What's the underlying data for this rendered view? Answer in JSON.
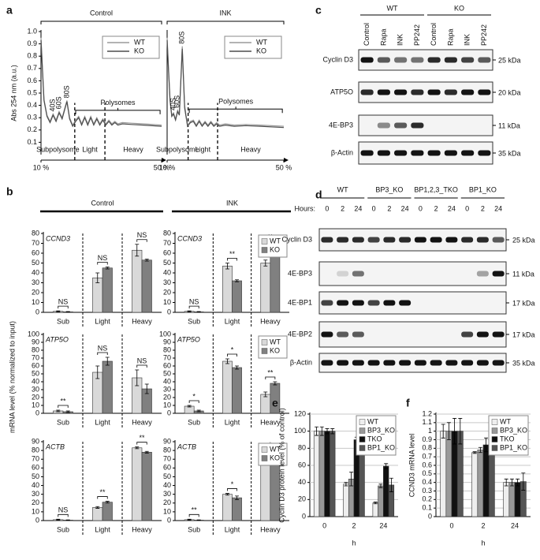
{
  "chart_data": [
    {
      "type": "line",
      "panel": "a",
      "title": "Control",
      "y_label": "Abs 254 nm (a.u.)",
      "x": [
        10,
        10.5,
        11,
        12,
        13,
        14,
        15,
        16,
        17,
        18.6,
        19.5,
        20.5,
        21.5,
        22.5,
        23.5,
        24.5,
        25.5,
        26.5,
        27.5,
        28.5,
        29.5,
        30.5,
        31.5,
        32.5,
        33.5,
        34.5,
        35.5,
        37,
        40,
        44,
        50
      ],
      "series": [
        {
          "name": "WT",
          "color": "#9a9a9a",
          "values": [
            0.95,
            0.7,
            0.45,
            0.32,
            0.27,
            0.33,
            0.28,
            0.35,
            0.3,
            0.44,
            0.3,
            0.24,
            0.28,
            0.31,
            0.25,
            0.31,
            0.25,
            0.31,
            0.25,
            0.3,
            0.25,
            0.29,
            0.25,
            0.28,
            0.25,
            0.27,
            0.25,
            0.26,
            0.255,
            0.25,
            0.24
          ]
        },
        {
          "name": "KO",
          "color": "#4d4d4d",
          "values": [
            0.93,
            0.68,
            0.44,
            0.31,
            0.26,
            0.32,
            0.27,
            0.34,
            0.29,
            0.43,
            0.29,
            0.23,
            0.27,
            0.3,
            0.24,
            0.3,
            0.24,
            0.3,
            0.24,
            0.29,
            0.24,
            0.28,
            0.24,
            0.27,
            0.24,
            0.26,
            0.24,
            0.25,
            0.245,
            0.24,
            0.23
          ]
        }
      ],
      "xlim": [
        10,
        50
      ],
      "xticks": [
        {
          "value": 10,
          "label": "10 %"
        },
        {
          "value": 50,
          "label": "50 %"
        }
      ],
      "ylim": [
        0,
        1
      ],
      "yticks": [
        0.1,
        0.2,
        0.3,
        0.4,
        0.5,
        0.6,
        0.7,
        0.8,
        0.9,
        {
          "value": 1,
          "label": "1.0"
        }
      ],
      "legend": "upper right",
      "peaks": [
        {
          "label": "40S",
          "x": 14,
          "y": 0.33
        },
        {
          "label": "60S",
          "x": 16,
          "y": 0.35
        },
        {
          "label": "80S",
          "x": 18.6,
          "y": 0.44
        }
      ],
      "bracket": {
        "label": "Polysomes",
        "from": 21.5,
        "to": 49.5,
        "y": 0.36
      },
      "regions": [
        {
          "label": "Subpolysome",
          "from": 10,
          "to": 21.2
        },
        {
          "label": "Light",
          "from": 21.2,
          "to": 31.2
        },
        {
          "label": "Heavy",
          "from": 31.2,
          "to": 50
        }
      ]
    },
    {
      "type": "line",
      "title": "INK",
      "x": [
        10,
        10.5,
        11,
        11.6,
        12.2,
        12.9,
        13.6,
        14.2,
        15.2,
        16,
        17,
        18,
        19,
        20,
        21,
        22,
        23,
        24,
        25,
        26,
        27,
        28,
        30,
        33,
        37,
        42,
        50
      ],
      "series": [
        {
          "name": "WT",
          "color": "#9a9a9a",
          "values": [
            0.95,
            0.7,
            0.45,
            0.32,
            0.34,
            0.29,
            0.36,
            0.33,
            0.88,
            0.4,
            0.24,
            0.27,
            0.28,
            0.24,
            0.28,
            0.24,
            0.27,
            0.24,
            0.27,
            0.24,
            0.26,
            0.24,
            0.25,
            0.24,
            0.245,
            0.24,
            0.23
          ]
        },
        {
          "name": "KO",
          "color": "#4d4d4d",
          "values": [
            0.93,
            0.68,
            0.44,
            0.31,
            0.33,
            0.28,
            0.35,
            0.32,
            0.86,
            0.38,
            0.23,
            0.26,
            0.27,
            0.23,
            0.27,
            0.23,
            0.26,
            0.23,
            0.26,
            0.23,
            0.25,
            0.23,
            0.24,
            0.23,
            0.235,
            0.23,
            0.22
          ]
        }
      ],
      "xlim": [
        10,
        50
      ],
      "xticks": [
        {
          "value": 10,
          "label": "10 %"
        },
        {
          "value": 50,
          "label": "50 %"
        }
      ],
      "ylim": [
        0,
        1
      ],
      "legend": "upper right",
      "peaks": [
        {
          "label": "40S",
          "x": 12.2,
          "y": 0.34
        },
        {
          "label": "60S",
          "x": 13.6,
          "y": 0.36
        },
        {
          "label": "80S",
          "x": 15.2,
          "y": 0.88
        }
      ],
      "bracket": {
        "label": "Polysomes",
        "from": 17.6,
        "to": 49.5,
        "y": 0.37
      },
      "regions": [
        {
          "label": "Subpolysome",
          "from": 10,
          "to": 17.2
        },
        {
          "label": "Light",
          "from": 17.2,
          "to": 27.3
        },
        {
          "label": "Heavy",
          "from": 27.3,
          "to": 50
        }
      ]
    },
    {
      "type": "bar",
      "panel": "b",
      "title": "Control",
      "y_label": "mRNA level (% normalized to input)",
      "annotation": "CCND3",
      "categories": [
        "Sub",
        "Light",
        "Heavy"
      ],
      "series": [
        {
          "color": "#d9d9d9",
          "values": [
            1,
            35,
            63
          ],
          "errors": [
            0.5,
            5,
            6
          ]
        },
        {
          "color": "#808080",
          "values": [
            0.5,
            45,
            53
          ],
          "errors": [
            0.3,
            1,
            1
          ]
        }
      ],
      "significance": [
        "NS",
        "NS",
        "NS"
      ],
      "ylim": [
        0,
        80
      ],
      "yticks": [
        0,
        10,
        20,
        30,
        40,
        50,
        60,
        70,
        80
      ],
      "dividers": true
    },
    {
      "type": "bar",
      "title": "INK",
      "annotation": "CCND3",
      "categories": [
        "Sub",
        "Light",
        "Heavy"
      ],
      "series": [
        {
          "name": "WT",
          "color": "#d9d9d9",
          "values": [
            1,
            47,
            50
          ],
          "errors": [
            0.5,
            3,
            3
          ]
        },
        {
          "name": "KO",
          "color": "#808080",
          "values": [
            0.5,
            32,
            66
          ],
          "errors": [
            0.3,
            1,
            1
          ]
        }
      ],
      "significance": [
        "NS",
        "**",
        "**"
      ],
      "ylim": [
        0,
        80
      ],
      "yticks": [
        0,
        10,
        20,
        30,
        40,
        50,
        60,
        70,
        80
      ],
      "dividers": true,
      "legend": "upper right"
    },
    {
      "type": "bar",
      "annotation": "ATP5O",
      "categories": [
        "Sub",
        "Light",
        "Heavy"
      ],
      "series": [
        {
          "color": "#d9d9d9",
          "values": [
            3,
            52,
            45
          ],
          "errors": [
            1,
            8,
            10
          ]
        },
        {
          "color": "#808080",
          "values": [
            2,
            66,
            31
          ],
          "errors": [
            1,
            5,
            6
          ]
        }
      ],
      "significance": [
        "**",
        "NS",
        "NS"
      ],
      "ylim": [
        0,
        100
      ],
      "yticks": [
        0,
        10,
        20,
        30,
        40,
        50,
        60,
        70,
        80,
        90,
        100
      ],
      "dividers": true
    },
    {
      "type": "bar",
      "annotation": "ATP5O",
      "categories": [
        "Sub",
        "Light",
        "Heavy"
      ],
      "series": [
        {
          "name": "WT",
          "color": "#d9d9d9",
          "values": [
            9,
            66,
            24
          ],
          "errors": [
            1,
            3,
            3
          ]
        },
        {
          "name": "KO",
          "color": "#808080",
          "values": [
            3,
            58,
            38
          ],
          "errors": [
            1,
            2,
            2
          ]
        }
      ],
      "significance": [
        "*",
        "*",
        "**"
      ],
      "ylim": [
        0,
        100
      ],
      "yticks": [
        0,
        10,
        20,
        30,
        40,
        50,
        60,
        70,
        80,
        90,
        100
      ],
      "dividers": true,
      "legend": "upper right"
    },
    {
      "type": "bar",
      "annotation": "ACTB",
      "categories": [
        "Sub",
        "Light",
        "Heavy"
      ],
      "series": [
        {
          "color": "#d9d9d9",
          "values": [
            1,
            15,
            83
          ],
          "errors": [
            0.5,
            1,
            1
          ]
        },
        {
          "color": "#808080",
          "values": [
            0.5,
            21,
            78
          ],
          "errors": [
            0.3,
            1,
            1
          ]
        }
      ],
      "significance": [
        "NS",
        "**",
        "**"
      ],
      "ylim": [
        0,
        90
      ],
      "yticks": [
        0,
        10,
        20,
        30,
        40,
        50,
        60,
        70,
        80,
        90
      ],
      "dividers": true
    },
    {
      "type": "bar",
      "annotation": "ACTB",
      "categories": [
        "Sub",
        "Light",
        "Heavy"
      ],
      "series": [
        {
          "name": "WT",
          "color": "#d9d9d9",
          "values": [
            1,
            30,
            68
          ],
          "errors": [
            0.5,
            1,
            1
          ]
        },
        {
          "name": "KO",
          "color": "#808080",
          "values": [
            0.5,
            26,
            74
          ],
          "errors": [
            0.3,
            2,
            2
          ]
        }
      ],
      "significance": [
        "**",
        "*",
        "*"
      ],
      "ylim": [
        0,
        90
      ],
      "yticks": [
        0,
        10,
        20,
        30,
        40,
        50,
        60,
        70,
        80,
        90
      ],
      "dividers": true,
      "legend": "upper right"
    },
    {
      "type": "bar",
      "panel": "e",
      "y_label": "Cyclin D3 protein level (% of control)",
      "x_label": "h",
      "categories": [
        "0",
        "2",
        "24"
      ],
      "series": [
        {
          "name": "WT",
          "color": "#eeeeee",
          "values": [
            100,
            38,
            16
          ],
          "errors": [
            5,
            2,
            1
          ]
        },
        {
          "name": "BP3_KO",
          "color": "#999999",
          "values": [
            100,
            44,
            36
          ],
          "errors": [
            5,
            8,
            2
          ]
        },
        {
          "name": "TKO",
          "color": "#111111",
          "values": [
            100,
            90,
            59
          ],
          "errors": [
            3,
            3,
            3
          ]
        },
        {
          "name": "BP1_KO",
          "color": "#555555",
          "values": [
            100,
            98,
            37
          ],
          "errors": [
            3,
            6,
            8
          ]
        }
      ],
      "ylim": [
        0,
        120
      ],
      "yticks": [
        0,
        20,
        40,
        60,
        80,
        100,
        120
      ],
      "grid": true,
      "legend": "upper right"
    },
    {
      "type": "bar",
      "panel": "f",
      "y_label": "CCND3 mRNA level",
      "x_label": "h",
      "categories": [
        "0",
        "2",
        "24"
      ],
      "series": [
        {
          "name": "WT",
          "color": "#eeeeee",
          "values": [
            1,
            0.75,
            0.4
          ],
          "errors": [
            0.08,
            0.01,
            0.04
          ]
        },
        {
          "name": "BP3_KO",
          "color": "#999999",
          "values": [
            1,
            0.78,
            0.4
          ],
          "errors": [
            0.1,
            0.03,
            0.04
          ]
        },
        {
          "name": "TKO",
          "color": "#111111",
          "values": [
            1,
            0.84,
            0.4
          ],
          "errors": [
            0.15,
            0.08,
            0.04
          ]
        },
        {
          "name": "BP1_KO",
          "color": "#555555",
          "values": [
            1,
            0.93,
            0.41
          ],
          "errors": [
            0.15,
            0.17,
            0.1
          ]
        }
      ],
      "ylim": [
        0,
        1.2
      ],
      "yticks": [
        0,
        0.1,
        0.2,
        0.3,
        0.4,
        0.5,
        0.6,
        0.7,
        0.8,
        0.9,
        1,
        1.1,
        1.2
      ],
      "grid": true,
      "legend": "upper right"
    }
  ],
  "blots": [
    {
      "panel": "c",
      "groups": [
        {
          "label": "WT",
          "lanes": [
            "Control",
            "Rapa",
            "INK",
            "PP242"
          ]
        },
        {
          "label": "KO",
          "lanes": [
            "Control",
            "Rapa",
            "INK",
            "PP242"
          ]
        }
      ],
      "rows": [
        {
          "label": "Cyclin D3",
          "marker": "25 kDa"
        },
        {
          "label": "ATP5O",
          "marker": "20 kDa"
        },
        {
          "label": "4E-BP3",
          "marker": "11 kDa"
        },
        {
          "label": "β-Actin",
          "marker": "35 kDa"
        }
      ]
    },
    {
      "panel": "d",
      "lane_header": "Hours:",
      "groups": [
        {
          "label": "WT",
          "lanes": [
            "0",
            "2",
            "24"
          ]
        },
        {
          "label": "BP3_KO",
          "lanes": [
            "0",
            "2",
            "24"
          ]
        },
        {
          "label": "BP1,2,3_TKO",
          "lanes": [
            "0",
            "2",
            "24"
          ]
        },
        {
          "label": "BP1_KO",
          "lanes": [
            "0",
            "2",
            "24"
          ]
        }
      ],
      "rows": [
        {
          "label": "Cyclin D3",
          "marker": "25 kDa"
        },
        {
          "label": "4E-BP3",
          "marker": "11 kDa"
        },
        {
          "label": "4E-BP1",
          "marker": "17 kDa"
        },
        {
          "label": "4E-BP2",
          "marker": "17 kDa"
        },
        {
          "label": "β-Actin",
          "marker": "35 kDa"
        }
      ]
    }
  ]
}
